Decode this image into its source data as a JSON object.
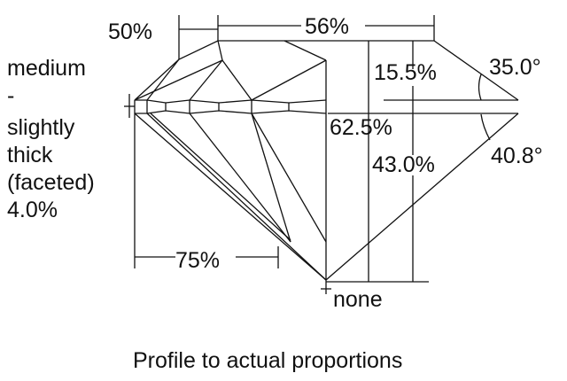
{
  "labels": {
    "crown_height_side": "50%",
    "table": "56%",
    "crown_height": "15.5%",
    "crown_angle": "35.0°",
    "total_depth": "62.5%",
    "pavilion_depth": "43.0%",
    "pavilion_angle": "40.8°",
    "lower_half": "75%",
    "culet": "none",
    "girdle": [
      "medium",
      "-",
      "slightly",
      "thick",
      "(faceted)",
      "4.0%"
    ]
  },
  "caption": "Profile to actual proportions"
}
